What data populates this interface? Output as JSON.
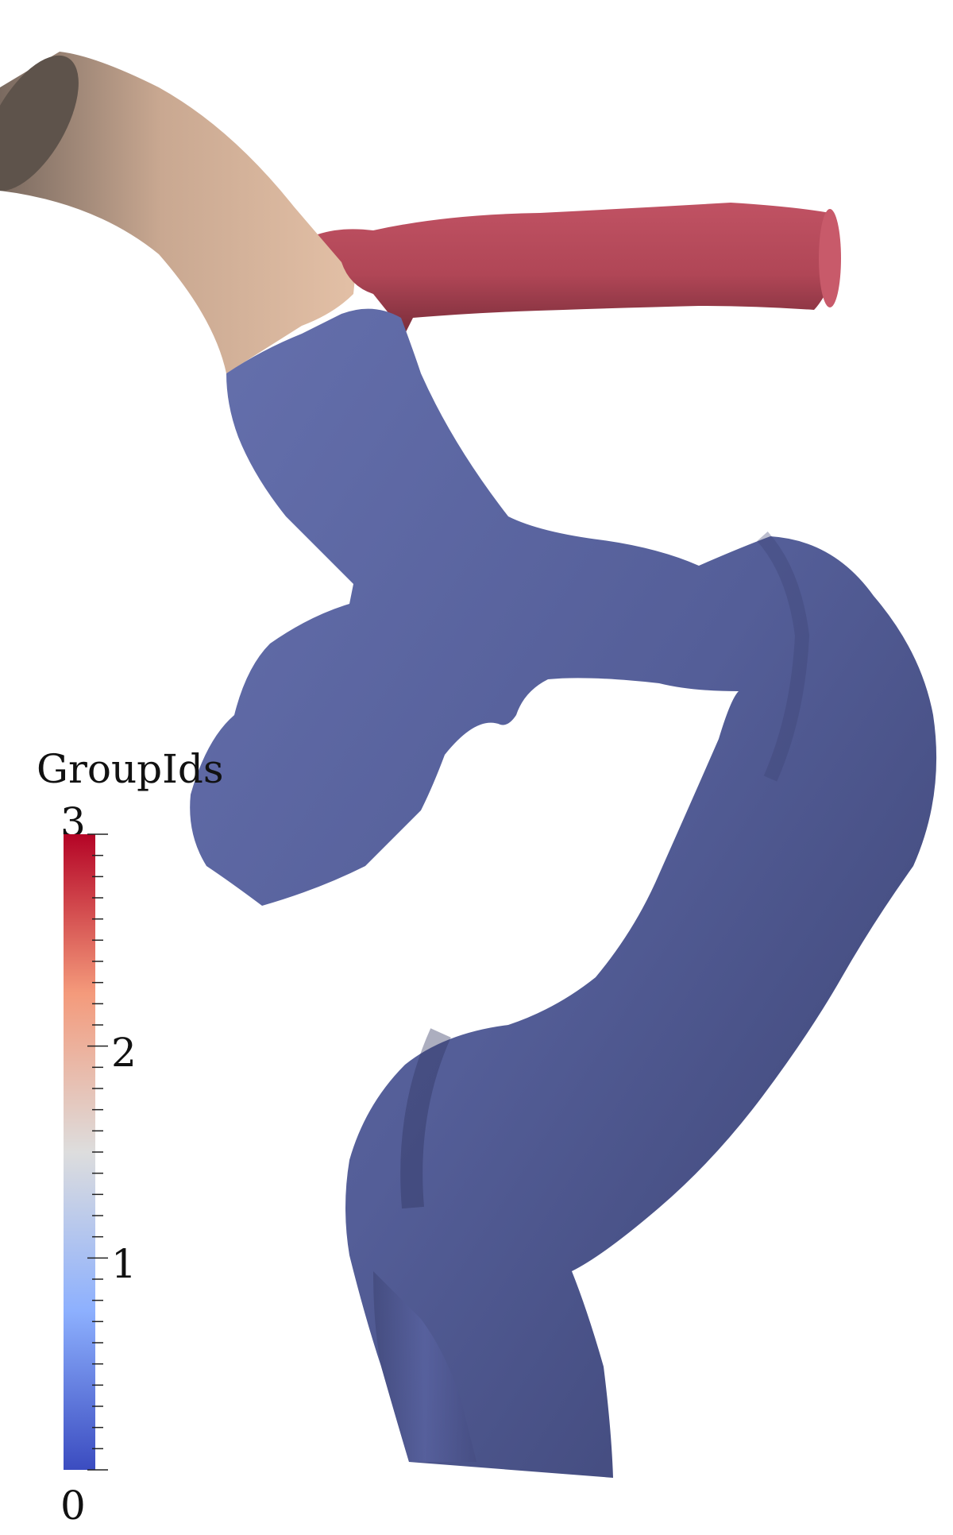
{
  "legend": {
    "title": "GroupIds",
    "max_label": "3",
    "min_label": "0",
    "tick_labels": [
      "1",
      "2"
    ],
    "range": [
      0,
      3
    ],
    "colormap": [
      "#3b4cc0",
      "#8db0fe",
      "#dddddd",
      "#f49a7b",
      "#b40426"
    ]
  },
  "scene": {
    "background": "#ffffff",
    "surface_colors": {
      "group_0": "#5a64a2",
      "group_2": "#d8b49a",
      "group_3": "#b34a5a"
    }
  }
}
